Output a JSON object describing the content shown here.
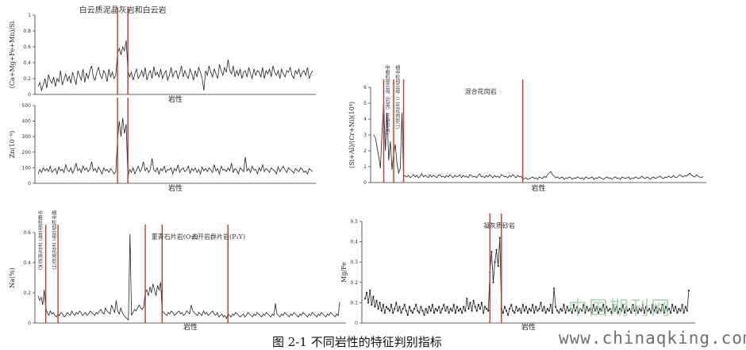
{
  "caption": "图 2-1 不同岩性的特征判别指标",
  "watermark": {
    "site_cn": "中国期刊网",
    "url": "www.chinaqking.com"
  },
  "colors": {
    "line": "#222222",
    "boundary": "#c0392b",
    "axis": "#333333"
  },
  "chart_data": [
    {
      "id": "p1",
      "type": "line",
      "title": "白云质泥晶灰岩和白云岩",
      "xlabel": "岩性",
      "ylabel": "(Ca+Mg+Fe+Mn)/Si",
      "ylim": [
        0,
        1
      ],
      "yticks": [
        "0",
        "0.2",
        "0.4",
        "0.6",
        "0.8",
        "1"
      ],
      "n_samples": 160,
      "boundaries": [
        46,
        52
      ],
      "annotations": [],
      "markers": false,
      "series": [
        {
          "values": [
            0.1,
            0.15,
            0.05,
            0.12,
            0.2,
            0.08,
            0.25,
            0.18,
            0.14,
            0.22,
            0.1,
            0.2,
            0.16,
            0.3,
            0.12,
            0.19,
            0.26,
            0.17,
            0.23,
            0.14,
            0.28,
            0.2,
            0.12,
            0.3,
            0.24,
            0.18,
            0.32,
            0.15,
            0.27,
            0.2,
            0.3,
            0.36,
            0.22,
            0.18,
            0.28,
            0.34,
            0.24,
            0.2,
            0.3,
            0.26,
            0.16,
            0.32,
            0.22,
            0.28,
            0.2,
            0.24,
            0.52,
            0.58,
            0.5,
            0.6,
            0.55,
            0.68,
            0.3,
            0.22,
            0.28,
            0.18,
            0.26,
            0.32,
            0.2,
            0.24,
            0.3,
            0.22,
            0.34,
            0.18,
            0.26,
            0.3,
            0.2,
            0.35,
            0.24,
            0.28,
            0.22,
            0.32,
            0.2,
            0.26,
            0.3,
            0.18,
            0.24,
            0.34,
            0.22,
            0.28,
            0.3,
            0.2,
            0.26,
            0.36,
            0.22,
            0.3,
            0.24,
            0.2,
            0.32,
            0.26,
            0.18,
            0.3,
            0.22,
            0.34,
            0.28,
            0.2,
            0.05,
            0.3,
            0.24,
            0.36,
            0.28,
            0.22,
            0.32,
            0.26,
            0.2,
            0.38,
            0.3,
            0.24,
            0.34,
            0.28,
            0.44,
            0.3,
            0.26,
            0.36,
            0.22,
            0.3,
            0.24,
            0.32,
            0.2,
            0.28,
            0.3,
            0.22,
            0.34,
            0.26,
            0.2,
            0.32,
            0.24,
            0.3,
            0.28,
            0.22,
            0.34,
            0.2,
            0.3,
            0.26,
            0.32,
            0.22,
            0.36,
            0.28,
            0.24,
            0.3,
            0.2,
            0.32,
            0.26,
            0.22,
            0.3,
            0.28,
            0.34,
            0.24,
            0.2,
            0.3,
            0.26,
            0.32,
            0.22,
            0.28,
            0.3,
            0.24,
            0.34,
            0.2,
            0.26,
            0.3
          ]
        }
      ]
    },
    {
      "id": "p2",
      "type": "line",
      "title": "",
      "xlabel": "岩性",
      "ylabel": "Zn(10⁻⁶)",
      "ylim": [
        0,
        500
      ],
      "yticks": [
        "0",
        "100",
        "200",
        "300",
        "400",
        "500"
      ],
      "n_samples": 160,
      "boundaries": [
        46,
        52
      ],
      "annotations": [],
      "markers": false,
      "series": [
        {
          "values": [
            60,
            90,
            70,
            100,
            80,
            95,
            75,
            110,
            70,
            85,
            95,
            60,
            105,
            80,
            90,
            70,
            120,
            85,
            75,
            100,
            65,
            90,
            130,
            80,
            95,
            70,
            110,
            85,
            100,
            75,
            90,
            140,
            80,
            95,
            70,
            105,
            85,
            60,
            100,
            80,
            90,
            70,
            95,
            80,
            60,
            75,
            280,
            400,
            300,
            420,
            320,
            380,
            40,
            90,
            70,
            100,
            60,
            85,
            110,
            75,
            95,
            140,
            80,
            100,
            70,
            90,
            160,
            85,
            75,
            100,
            60,
            95,
            80,
            110,
            70,
            90,
            85,
            100,
            60,
            95,
            80,
            120,
            70,
            90,
            100,
            75,
            85,
            110,
            65,
            95,
            80,
            100,
            70,
            90,
            60,
            105,
            80,
            95,
            75,
            100,
            85,
            70,
            120,
            80,
            95,
            60,
            110,
            85,
            90,
            75,
            100,
            80,
            130,
            70,
            95,
            85,
            60,
            100,
            90,
            75,
            170,
            80,
            95,
            70,
            110,
            85,
            90,
            60,
            100,
            80,
            120,
            75,
            95,
            85,
            70,
            100,
            90,
            80,
            60,
            105,
            75,
            95,
            110,
            85,
            70,
            100,
            90,
            80,
            65,
            95,
            85,
            75,
            100,
            90,
            70,
            80,
            60,
            95,
            85,
            75
          ]
        }
      ]
    },
    {
      "id": "p3",
      "type": "line",
      "title": "",
      "xlabel": "岩性",
      "ylabel": "(Si+Al)/(Cr+Ni)(10⁴)",
      "ylim": [
        0,
        6
      ],
      "yticks": [
        "0",
        "1",
        "2",
        "3",
        "4",
        "5",
        "6"
      ],
      "n_samples": 200,
      "boundaries": [
        6,
        12,
        18,
        90
      ],
      "annotations": [
        {
          "text": "混合花岗岩",
          "at": 55,
          "vertical": false
        },
        {
          "text": "中粗粒部云母（石英）片麻岩(K)",
          "at": 8,
          "vertical": true
        },
        {
          "text": "细中粒部云母（二长花岗岩(T)",
          "at": 14,
          "vertical": true
        }
      ],
      "markers": false,
      "series": [
        {
          "values": [
            3.0,
            2.8,
            2.2,
            1.6,
            0.9,
            3.2,
            5.0,
            2.0,
            4.4,
            1.4,
            2.6,
            0.8,
            1.8,
            2.4,
            1.2,
            0.6,
            0.9,
            4.4,
            0.5,
            0.4,
            0.35,
            0.45,
            0.3,
            0.4,
            0.5,
            0.35,
            0.45,
            0.3,
            0.4,
            0.55,
            0.35,
            0.45,
            0.4,
            0.3,
            0.5,
            0.35,
            0.45,
            0.4,
            0.3,
            0.45,
            0.5,
            0.35,
            0.4,
            0.3,
            0.45,
            0.35,
            0.5,
            0.4,
            0.3,
            0.45,
            0.35,
            0.4,
            0.5,
            0.3,
            0.45,
            0.35,
            0.4,
            0.3,
            0.5,
            0.45,
            0.35,
            0.4,
            0.3,
            0.45,
            0.55,
            0.35,
            0.4,
            0.3,
            0.45,
            0.35,
            0.5,
            0.4,
            0.3,
            0.45,
            0.35,
            0.4,
            0.3,
            0.5,
            0.45,
            0.35,
            0.4,
            0.3,
            0.45,
            0.35,
            0.5,
            0.4,
            0.3,
            0.45,
            0.35,
            0.4,
            0.2,
            0.25,
            0.3,
            0.2,
            0.25,
            0.3,
            0.35,
            0.25,
            0.3,
            0.2,
            0.35,
            0.3,
            0.25,
            0.4,
            0.3,
            0.5,
            0.6,
            0.7,
            0.5,
            0.4,
            0.3,
            0.35,
            0.25,
            0.3,
            0.35,
            0.2,
            0.3,
            0.25,
            0.35,
            0.3,
            0.2,
            0.3,
            0.25,
            0.35,
            0.3,
            0.25,
            0.3,
            0.2,
            0.35,
            0.3,
            0.25,
            0.3,
            0.35,
            0.2,
            0.3,
            0.25,
            0.35,
            0.3,
            0.25,
            0.2,
            0.3,
            0.35,
            0.25,
            0.3,
            0.2,
            0.3,
            0.35,
            0.25,
            0.3,
            0.2,
            0.35,
            0.3,
            0.25,
            0.3,
            0.35,
            0.2,
            0.3,
            0.25,
            0.35,
            0.3,
            0.25,
            0.3,
            0.4,
            0.3,
            0.25,
            0.35,
            0.3,
            0.2,
            0.3,
            0.35,
            0.25,
            0.3,
            0.35,
            0.4,
            0.3,
            0.25,
            0.35,
            0.3,
            0.4,
            0.35,
            0.3,
            0.45,
            0.35,
            0.3,
            0.4,
            0.5,
            0.4,
            0.35,
            0.45,
            0.4,
            0.5,
            0.6,
            0.45,
            0.4,
            0.35,
            0.5,
            0.4,
            0.35,
            0.3,
            0.4
          ]
        }
      ]
    },
    {
      "id": "p4",
      "type": "line",
      "title": "",
      "xlabel": "岩性",
      "ylabel": "Na(%)",
      "ylim": [
        0,
        0.6
      ],
      "yticks": [
        "0",
        "0.2",
        "0.4",
        "0.6"
      ],
      "n_samples": 200,
      "boundaries": [
        5,
        13,
        70,
        81,
        124
      ],
      "annotations": [
        {
          "text": "董青石片岩(O₁f)",
          "at": 74,
          "vertical": false
        },
        {
          "text": "云开岩群片岩(P₁Y)",
          "at": 100,
          "vertical": false
        },
        {
          "text": "中粗粒部云母二长花岗岩(K)",
          "at": 1,
          "vertical": true
        },
        {
          "text": "细中粒部云母二长花岗岩(T)",
          "at": 10,
          "vertical": true
        }
      ],
      "markers": false,
      "series": [
        {
          "values": [
            0.18,
            0.15,
            0.17,
            0.12,
            0.22,
            0.1,
            0.07,
            0.05,
            0.08,
            0.06,
            0.07,
            0.05,
            0.04,
            0.06,
            0.05,
            0.07,
            0.06,
            0.04,
            0.05,
            0.07,
            0.06,
            0.05,
            0.08,
            0.06,
            0.05,
            0.07,
            0.06,
            0.08,
            0.07,
            0.05,
            0.06,
            0.07,
            0.05,
            0.06,
            0.08,
            0.07,
            0.06,
            0.05,
            0.07,
            0.06,
            0.08,
            0.09,
            0.07,
            0.06,
            0.1,
            0.08,
            0.07,
            0.06,
            0.12,
            0.09,
            0.07,
            0.15,
            0.08,
            0.06,
            0.1,
            0.07,
            0.05,
            0.04,
            0.03,
            0.02,
            0.59,
            0.05,
            0.07,
            0.09,
            0.08,
            0.1,
            0.12,
            0.1,
            0.09,
            0.11,
            0.2,
            0.22,
            0.18,
            0.24,
            0.2,
            0.26,
            0.22,
            0.18,
            0.25,
            0.22,
            0.27,
            0.08,
            0.07,
            0.06,
            0.05,
            0.07,
            0.06,
            0.08,
            0.07,
            0.05,
            0.06,
            0.07,
            0.08,
            0.06,
            0.07,
            0.05,
            0.06,
            0.08,
            0.07,
            0.06,
            0.12,
            0.08,
            0.07,
            0.06,
            0.05,
            0.07,
            0.06,
            0.05,
            0.08,
            0.06,
            0.07,
            0.05,
            0.06,
            0.07,
            0.08,
            0.06,
            0.05,
            0.07,
            0.04,
            0.05,
            0.06,
            0.04,
            0.05,
            0.03,
            0.06,
            0.05,
            0.04,
            0.06,
            0.05,
            0.07,
            0.06,
            0.05,
            0.04,
            0.05,
            0.06,
            0.04,
            0.05,
            0.07,
            0.06,
            0.05,
            0.04,
            0.06,
            0.05,
            0.07,
            0.06,
            0.05,
            0.04,
            0.06,
            0.05,
            0.07,
            0.06,
            0.05,
            0.04,
            0.06,
            0.05,
            0.13,
            0.06,
            0.05,
            0.04,
            0.06,
            0.05,
            0.07,
            0.06,
            0.05,
            0.04,
            0.06,
            0.05,
            0.07,
            0.06,
            0.05,
            0.04,
            0.06,
            0.05,
            0.07,
            0.06,
            0.05,
            0.04,
            0.06,
            0.05,
            0.07,
            0.06,
            0.05,
            0.04,
            0.06,
            0.05,
            0.07,
            0.06,
            0.05,
            0.04,
            0.06,
            0.05,
            0.07,
            0.06,
            0.05,
            0.04,
            0.06,
            0.05,
            0.14
          ]
        }
      ]
    },
    {
      "id": "p5",
      "type": "line",
      "title": "",
      "xlabel": "岩性",
      "ylabel": "Mg/Fe",
      "ylim": [
        0,
        0.5
      ],
      "yticks": [
        "0",
        "0.1",
        "0.2",
        "0.3",
        "0.4",
        "0.5"
      ],
      "n_samples": 200,
      "boundaries": [
        76,
        83
      ],
      "annotations": [
        {
          "text": "凝灰质砂岩",
          "at": 72,
          "vertical": false
        }
      ],
      "markers": true,
      "series": [
        {
          "values": [
            0.12,
            0.15,
            0.1,
            0.16,
            0.09,
            0.13,
            0.08,
            0.11,
            0.07,
            0.1,
            0.06,
            0.09,
            0.05,
            0.08,
            0.07,
            0.06,
            0.09,
            0.05,
            0.07,
            0.1,
            0.06,
            0.08,
            0.05,
            0.07,
            0.09,
            0.06,
            0.04,
            0.08,
            0.06,
            0.05,
            0.07,
            0.09,
            0.06,
            0.05,
            0.08,
            0.06,
            0.04,
            0.07,
            0.05,
            0.08,
            0.06,
            0.09,
            0.05,
            0.07,
            0.06,
            0.08,
            0.05,
            0.07,
            0.09,
            0.06,
            0.08,
            0.05,
            0.07,
            0.06,
            0.09,
            0.05,
            0.08,
            0.06,
            0.07,
            0.05,
            0.08,
            0.06,
            0.12,
            0.07,
            0.1,
            0.06,
            0.11,
            0.08,
            0.06,
            0.09,
            0.07,
            0.1,
            0.05,
            0.08,
            0.07,
            0.06,
            0.25,
            0.35,
            0.2,
            0.3,
            0.36,
            0.28,
            0.42,
            0.07,
            0.05,
            0.08,
            0.06,
            0.04,
            0.07,
            0.09,
            0.06,
            0.05,
            0.08,
            0.06,
            0.07,
            0.05,
            0.09,
            0.06,
            0.08,
            0.05,
            0.07,
            0.06,
            0.09,
            0.05,
            0.08,
            0.06,
            0.07,
            0.1,
            0.06,
            0.08,
            0.05,
            0.07,
            0.06,
            0.09,
            0.05,
            0.17,
            0.08,
            0.06,
            0.05,
            0.07,
            0.06,
            0.09,
            0.05,
            0.08,
            0.06,
            0.07,
            0.05,
            0.09,
            0.06,
            0.08,
            0.05,
            0.07,
            0.06,
            0.09,
            0.05,
            0.08,
            0.06,
            0.07,
            0.05,
            0.09,
            0.06,
            0.08,
            0.05,
            0.07,
            0.06,
            0.09,
            0.05,
            0.08,
            0.06,
            0.07,
            0.05,
            0.09,
            0.06,
            0.08,
            0.05,
            0.07,
            0.06,
            0.09,
            0.05,
            0.08,
            0.06,
            0.07,
            0.05,
            0.09,
            0.06,
            0.08,
            0.05,
            0.07,
            0.06,
            0.09,
            0.05,
            0.08,
            0.06,
            0.07,
            0.05,
            0.09,
            0.06,
            0.08,
            0.05,
            0.07,
            0.06,
            0.09,
            0.05,
            0.08,
            0.06,
            0.07,
            0.05,
            0.09,
            0.06,
            0.08,
            0.05,
            0.07,
            0.06,
            0.09,
            0.05,
            0.08,
            0.06,
            0.16
          ]
        }
      ]
    }
  ]
}
